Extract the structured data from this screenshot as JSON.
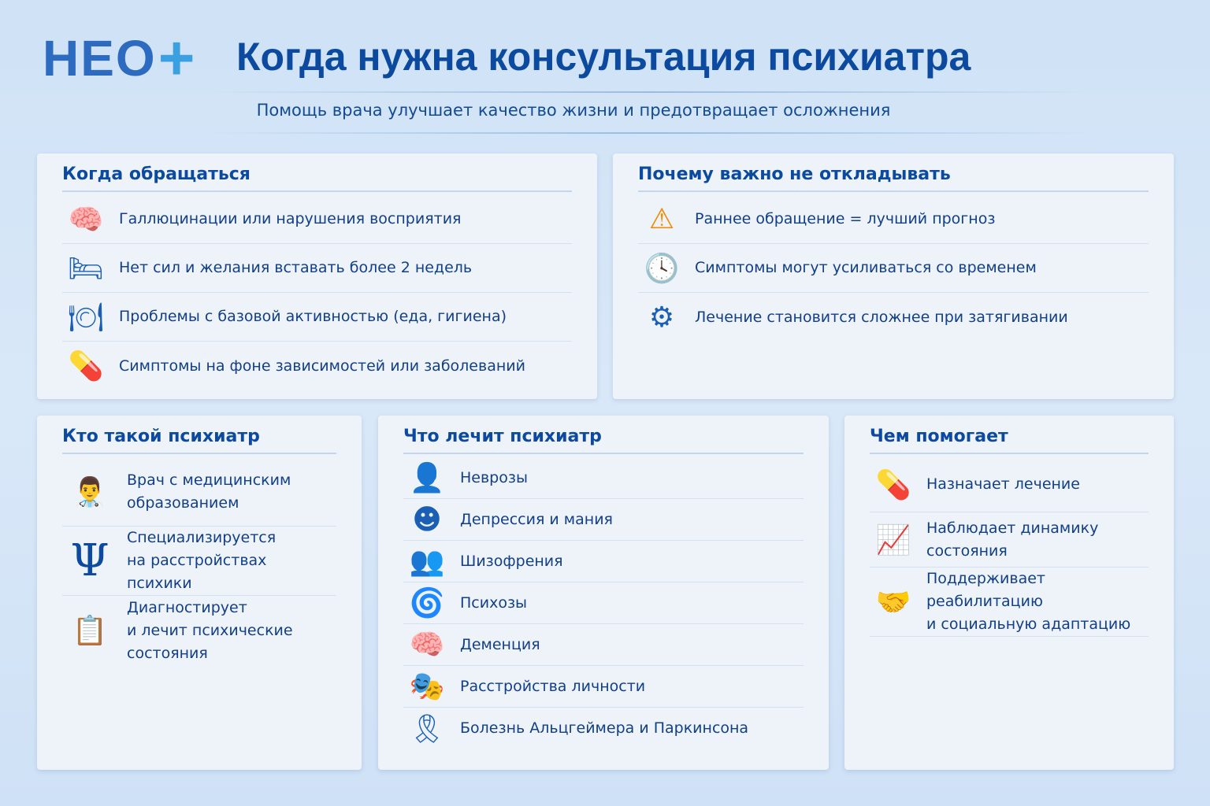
{
  "logo": {
    "text": "НЕО",
    "plus": "+"
  },
  "header": {
    "title": "Когда нужна консультация психиатра",
    "subtitle": "Помощь врача улучшает качество жизни и предотвращает осложнения"
  },
  "when": {
    "title": "Когда обращаться",
    "items": [
      {
        "icon": "brain-icon",
        "text": "Галлюцинации или нарушения восприятия"
      },
      {
        "icon": "bed-icon",
        "text": "Нет сил и желания вставать более 2 недель"
      },
      {
        "icon": "meal-hygiene-icon",
        "text": "Проблемы с базовой активностью (еда, гигиена)"
      },
      {
        "icon": "pill-icon",
        "text": "Симптомы на фоне зависимостей или заболеваний"
      }
    ]
  },
  "why": {
    "title": "Почему важно не откладывать",
    "items": [
      {
        "icon": "warning-icon",
        "text": "Раннее обращение = лучший прогноз"
      },
      {
        "icon": "clock-icon",
        "text": "Симптомы могут усиливаться со временем"
      },
      {
        "icon": "gear-icon",
        "text": "Лечение становится сложнее при затягивании"
      }
    ]
  },
  "who": {
    "title": "Кто такой психиатр",
    "items": [
      {
        "icon": "doctor-icon",
        "text1": "Врач с медицинским",
        "text2": "образованием"
      },
      {
        "icon": "psi-icon",
        "text1": "Специализируется",
        "text2": "на расстройствах психики"
      },
      {
        "icon": "clipboard-icon",
        "text1": "Диагностирует",
        "text2": "и лечит психические состояния"
      }
    ]
  },
  "treats": {
    "title": "Что лечит психиатр",
    "items": [
      {
        "icon": "head-gear-icon",
        "text": "Неврозы"
      },
      {
        "icon": "faces-icon",
        "text": "Депрессия и мания"
      },
      {
        "icon": "split-head-icon",
        "text": "Шизофрения"
      },
      {
        "icon": "psychosis-icon",
        "text": "Психозы"
      },
      {
        "icon": "head-brain-icon",
        "text": "Деменция"
      },
      {
        "icon": "masks-icon",
        "text": "Расстройства личности"
      },
      {
        "icon": "ribbon-icon",
        "text": "Болезнь Альцгеймера и Паркинсона"
      }
    ]
  },
  "helps": {
    "title": "Чем помогает",
    "items": [
      {
        "icon": "medicine-bottle-icon",
        "text1": "Назначает лечение",
        "text2": ""
      },
      {
        "icon": "chart-icon",
        "text1": "Наблюдает динамику состояния",
        "text2": ""
      },
      {
        "icon": "handshake-icon",
        "text1": "Поддерживает реабилитацию",
        "text2": "и социальную адаптацию"
      }
    ]
  },
  "colors": {
    "title": "#0b4a9e",
    "accent": "#1b5fb5",
    "warning": "#f08a00",
    "background": "#d3e5f7"
  }
}
